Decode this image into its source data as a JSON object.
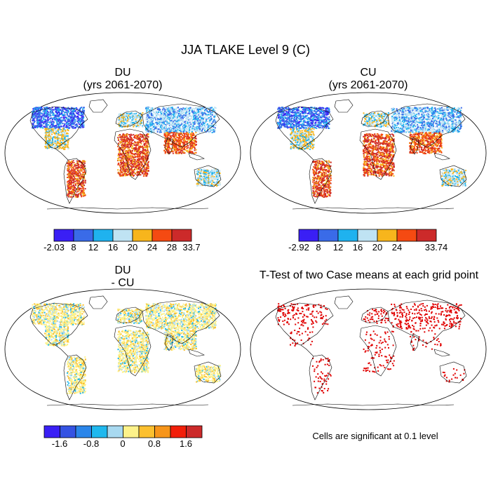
{
  "figure": {
    "title": "JJA TLAKE Level 9 (C)"
  },
  "panels": {
    "top_left": {
      "title_line1": "DU",
      "title_line2": "(yrs 2061-2070)",
      "colorbar": {
        "colors": [
          "#3a1ff5",
          "#3a6be8",
          "#1fb2ef",
          "#bfe3f3",
          "#f7b51c",
          "#f54a12",
          "#cc2a2a"
        ],
        "labels": [
          "-2.03",
          "8",
          "12",
          "16",
          "20",
          "24",
          "28",
          "33.7"
        ]
      }
    },
    "top_right": {
      "title_line1": "CU",
      "title_line2": "(yrs 2061-2070)",
      "colorbar": {
        "colors": [
          "#3a1ff5",
          "#3a6be8",
          "#1fb2ef",
          "#bfe3f3",
          "#f7b51c",
          "#f54a12",
          "#cc2a2a"
        ],
        "labels": [
          "-2.92",
          "8",
          "12",
          "16",
          "20",
          "24",
          "33.74"
        ]
      }
    },
    "bottom_left": {
      "title_line1": "DU",
      "title_line2": "- CU",
      "colorbar": {
        "colors": [
          "#3a1ff5",
          "#3553e3",
          "#2b86ea",
          "#1fb8ee",
          "#a8d9f0",
          "#fdf28a",
          "#fcc02f",
          "#f7951a",
          "#f21f0a",
          "#cc2a2a"
        ],
        "labels": [
          "-1.6",
          "-0.8",
          "0",
          "0.8",
          "1.6"
        ]
      }
    },
    "bottom_right": {
      "title": "T-Test of two Case means at each grid point",
      "note": "Cells are significant at 0.1 level"
    }
  }
}
